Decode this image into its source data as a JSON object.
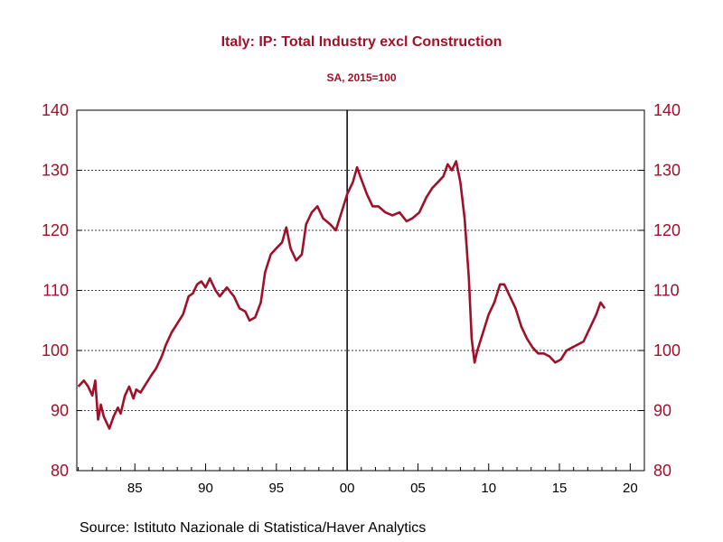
{
  "chart_data": {
    "type": "line",
    "title": "Italy: IP: Total Industry excl Construction",
    "subtitle": "SA, 2015=100",
    "source": "Source:  Istituto Nazionale di Statistica/Haver Analytics",
    "xlim": [
      1980.9,
      2021.0
    ],
    "ylim": [
      80,
      140
    ],
    "x_ticks": [
      {
        "value": 1985,
        "label": "85"
      },
      {
        "value": 1990,
        "label": "90"
      },
      {
        "value": 1995,
        "label": "95"
      },
      {
        "value": 2000,
        "label": "00"
      },
      {
        "value": 2005,
        "label": "05"
      },
      {
        "value": 2010,
        "label": "10"
      },
      {
        "value": 2015,
        "label": "15"
      },
      {
        "value": 2020,
        "label": "20"
      }
    ],
    "y_ticks": [
      80,
      90,
      100,
      110,
      120,
      130,
      140
    ],
    "gridlines": [
      90,
      100,
      110,
      120,
      130
    ],
    "reference_line_x": 2000,
    "series": [
      {
        "color": "#a0102a",
        "x": [
          1981.0,
          1981.4,
          1981.7,
          1982.0,
          1982.2,
          1982.4,
          1982.6,
          1982.8,
          1983.0,
          1983.2,
          1983.5,
          1983.8,
          1984.0,
          1984.3,
          1984.6,
          1984.9,
          1985.1,
          1985.4,
          1985.8,
          1986.2,
          1986.5,
          1986.9,
          1987.2,
          1987.6,
          1988.0,
          1988.4,
          1988.8,
          1989.1,
          1989.4,
          1989.7,
          1990.0,
          1990.3,
          1990.7,
          1991.0,
          1991.5,
          1992.0,
          1992.4,
          1992.8,
          1993.1,
          1993.5,
          1993.9,
          1994.2,
          1994.6,
          1995.0,
          1995.4,
          1995.7,
          1996.0,
          1996.4,
          1996.8,
          1997.1,
          1997.5,
          1997.9,
          1998.3,
          1998.8,
          1999.2,
          1999.6,
          2000.0,
          2000.4,
          2000.7,
          2001.0,
          2001.4,
          2001.8,
          2002.2,
          2002.7,
          2003.2,
          2003.7,
          2004.2,
          2004.6,
          2005.1,
          2005.6,
          2006.0,
          2006.4,
          2006.8,
          2007.1,
          2007.4,
          2007.7,
          2008.0,
          2008.3,
          2008.6,
          2008.8,
          2009.0,
          2009.2,
          2009.6,
          2010.0,
          2010.4,
          2010.8,
          2011.1,
          2011.5,
          2011.9,
          2012.3,
          2012.7,
          2013.1,
          2013.5,
          2013.9,
          2014.3,
          2014.7,
          2015.1,
          2015.5,
          2015.9,
          2016.3,
          2016.7,
          2017.0,
          2017.3,
          2017.6,
          2017.9,
          2018.2
        ],
        "y": [
          94,
          95,
          94,
          92.5,
          95,
          88.5,
          91,
          89,
          88,
          87,
          89,
          90.5,
          89.5,
          92.5,
          94,
          92,
          93.5,
          93,
          94.5,
          96,
          97,
          99,
          101,
          103,
          104.5,
          106,
          109,
          109.5,
          111,
          111.5,
          110.5,
          112,
          110,
          109,
          110.5,
          109,
          107,
          106.5,
          105,
          105.5,
          108,
          113,
          116,
          117,
          118,
          120.5,
          117,
          115,
          116,
          121,
          123,
          124,
          122,
          121,
          120,
          123,
          126,
          128,
          130.5,
          128.5,
          126,
          124,
          124,
          123,
          122.5,
          123,
          121.5,
          122,
          123,
          125.5,
          127,
          128,
          129,
          131,
          130,
          131.5,
          128,
          122,
          112,
          102,
          98,
          100,
          103,
          106,
          108,
          111,
          111,
          109,
          107,
          104,
          102,
          100.5,
          99.5,
          99.5,
          99,
          98,
          98.5,
          100,
          100.5,
          101,
          101.5,
          103,
          104.5,
          106,
          108,
          107
        ]
      }
    ]
  }
}
